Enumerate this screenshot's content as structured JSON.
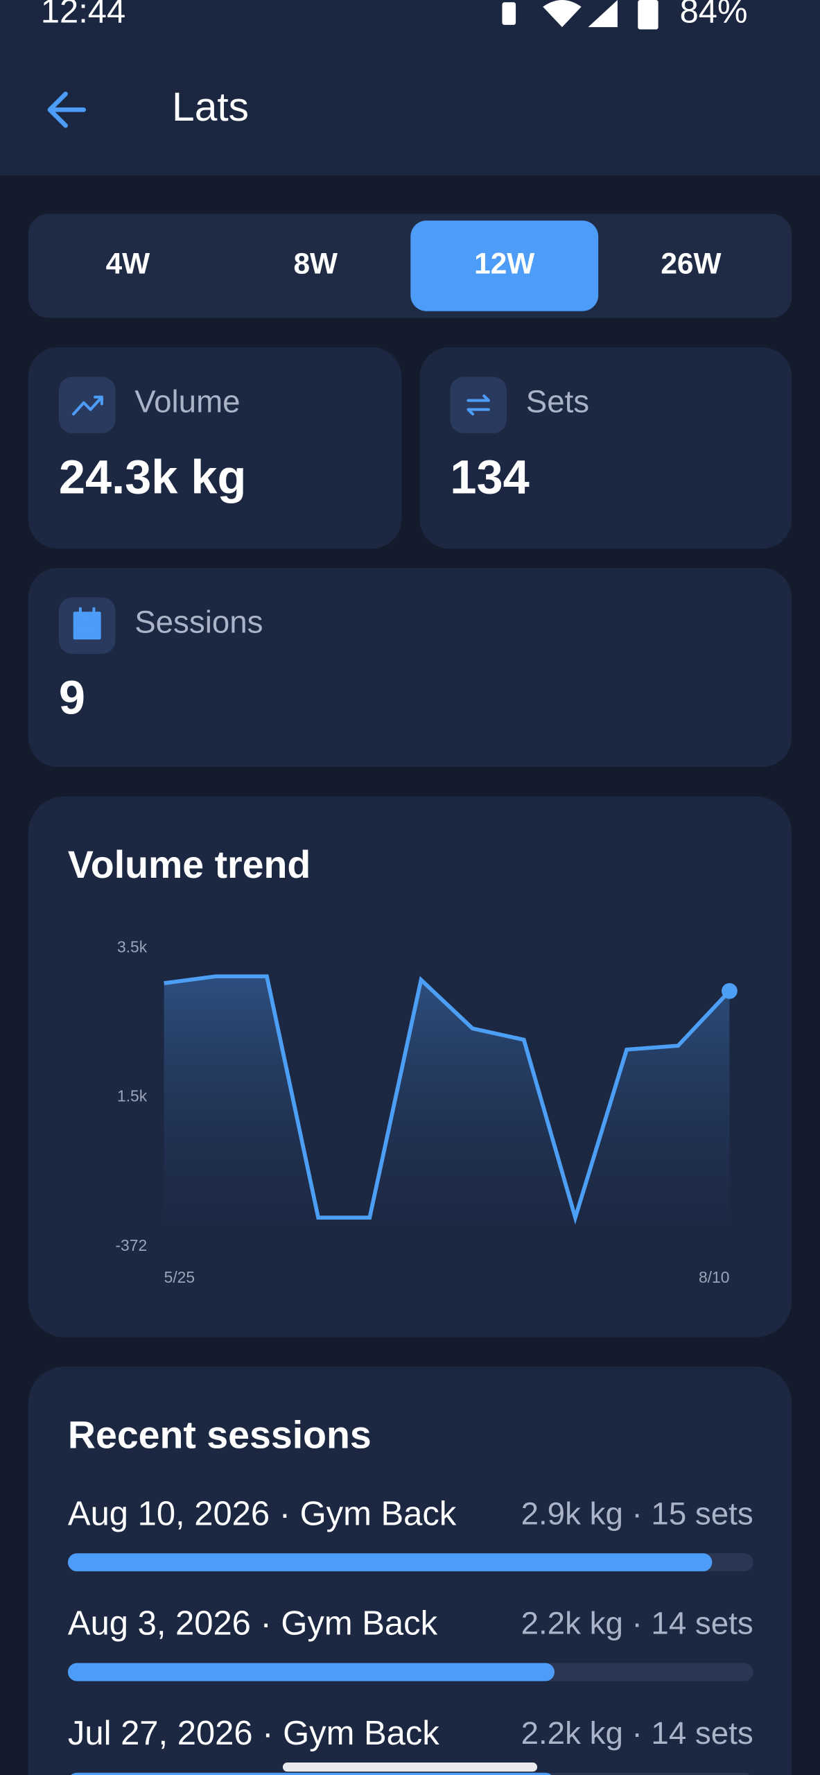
{
  "status_bar": {
    "time": "12:44",
    "battery": "84%"
  },
  "header": {
    "title": "Lats"
  },
  "tabs": {
    "items": [
      "4W",
      "8W",
      "12W",
      "26W"
    ],
    "selected_index": 2
  },
  "stats": [
    {
      "label": "Volume",
      "value": "24.3k kg"
    },
    {
      "label": "Sets",
      "value": "134"
    },
    {
      "label": "Sessions",
      "value": "9"
    }
  ],
  "chart_data": {
    "type": "line",
    "title": "Volume trend",
    "categories": [
      "5/25",
      null,
      null,
      null,
      null,
      null,
      null,
      null,
      null,
      null,
      null,
      "8/10"
    ],
    "values": [
      3000,
      3087,
      3087,
      0,
      0,
      3043,
      2421,
      2276,
      0,
      2150,
      2200,
      2900
    ],
    "color": "#4d9ff5",
    "ylim": [
      -372,
      3450
    ],
    "yticks": [
      {
        "value": -372,
        "label": "-372"
      },
      {
        "value": 1539,
        "label": "1.5k"
      },
      {
        "value": 3450,
        "label": "3.5k"
      }
    ]
  },
  "recent_sessions": {
    "title": "Recent sessions",
    "items": [
      {
        "name": "Aug 10, 2026 · Gym Back",
        "summary": "2.9k kg · 15 sets",
        "progress": 0.94
      },
      {
        "name": "Aug 3, 2026 · Gym Back",
        "summary": "2.2k kg · 14 sets",
        "progress": 0.71
      },
      {
        "name": "Jul 27, 2026 · Gym Back",
        "summary": "2.2k kg · 14 sets",
        "progress": 0.71
      }
    ]
  }
}
